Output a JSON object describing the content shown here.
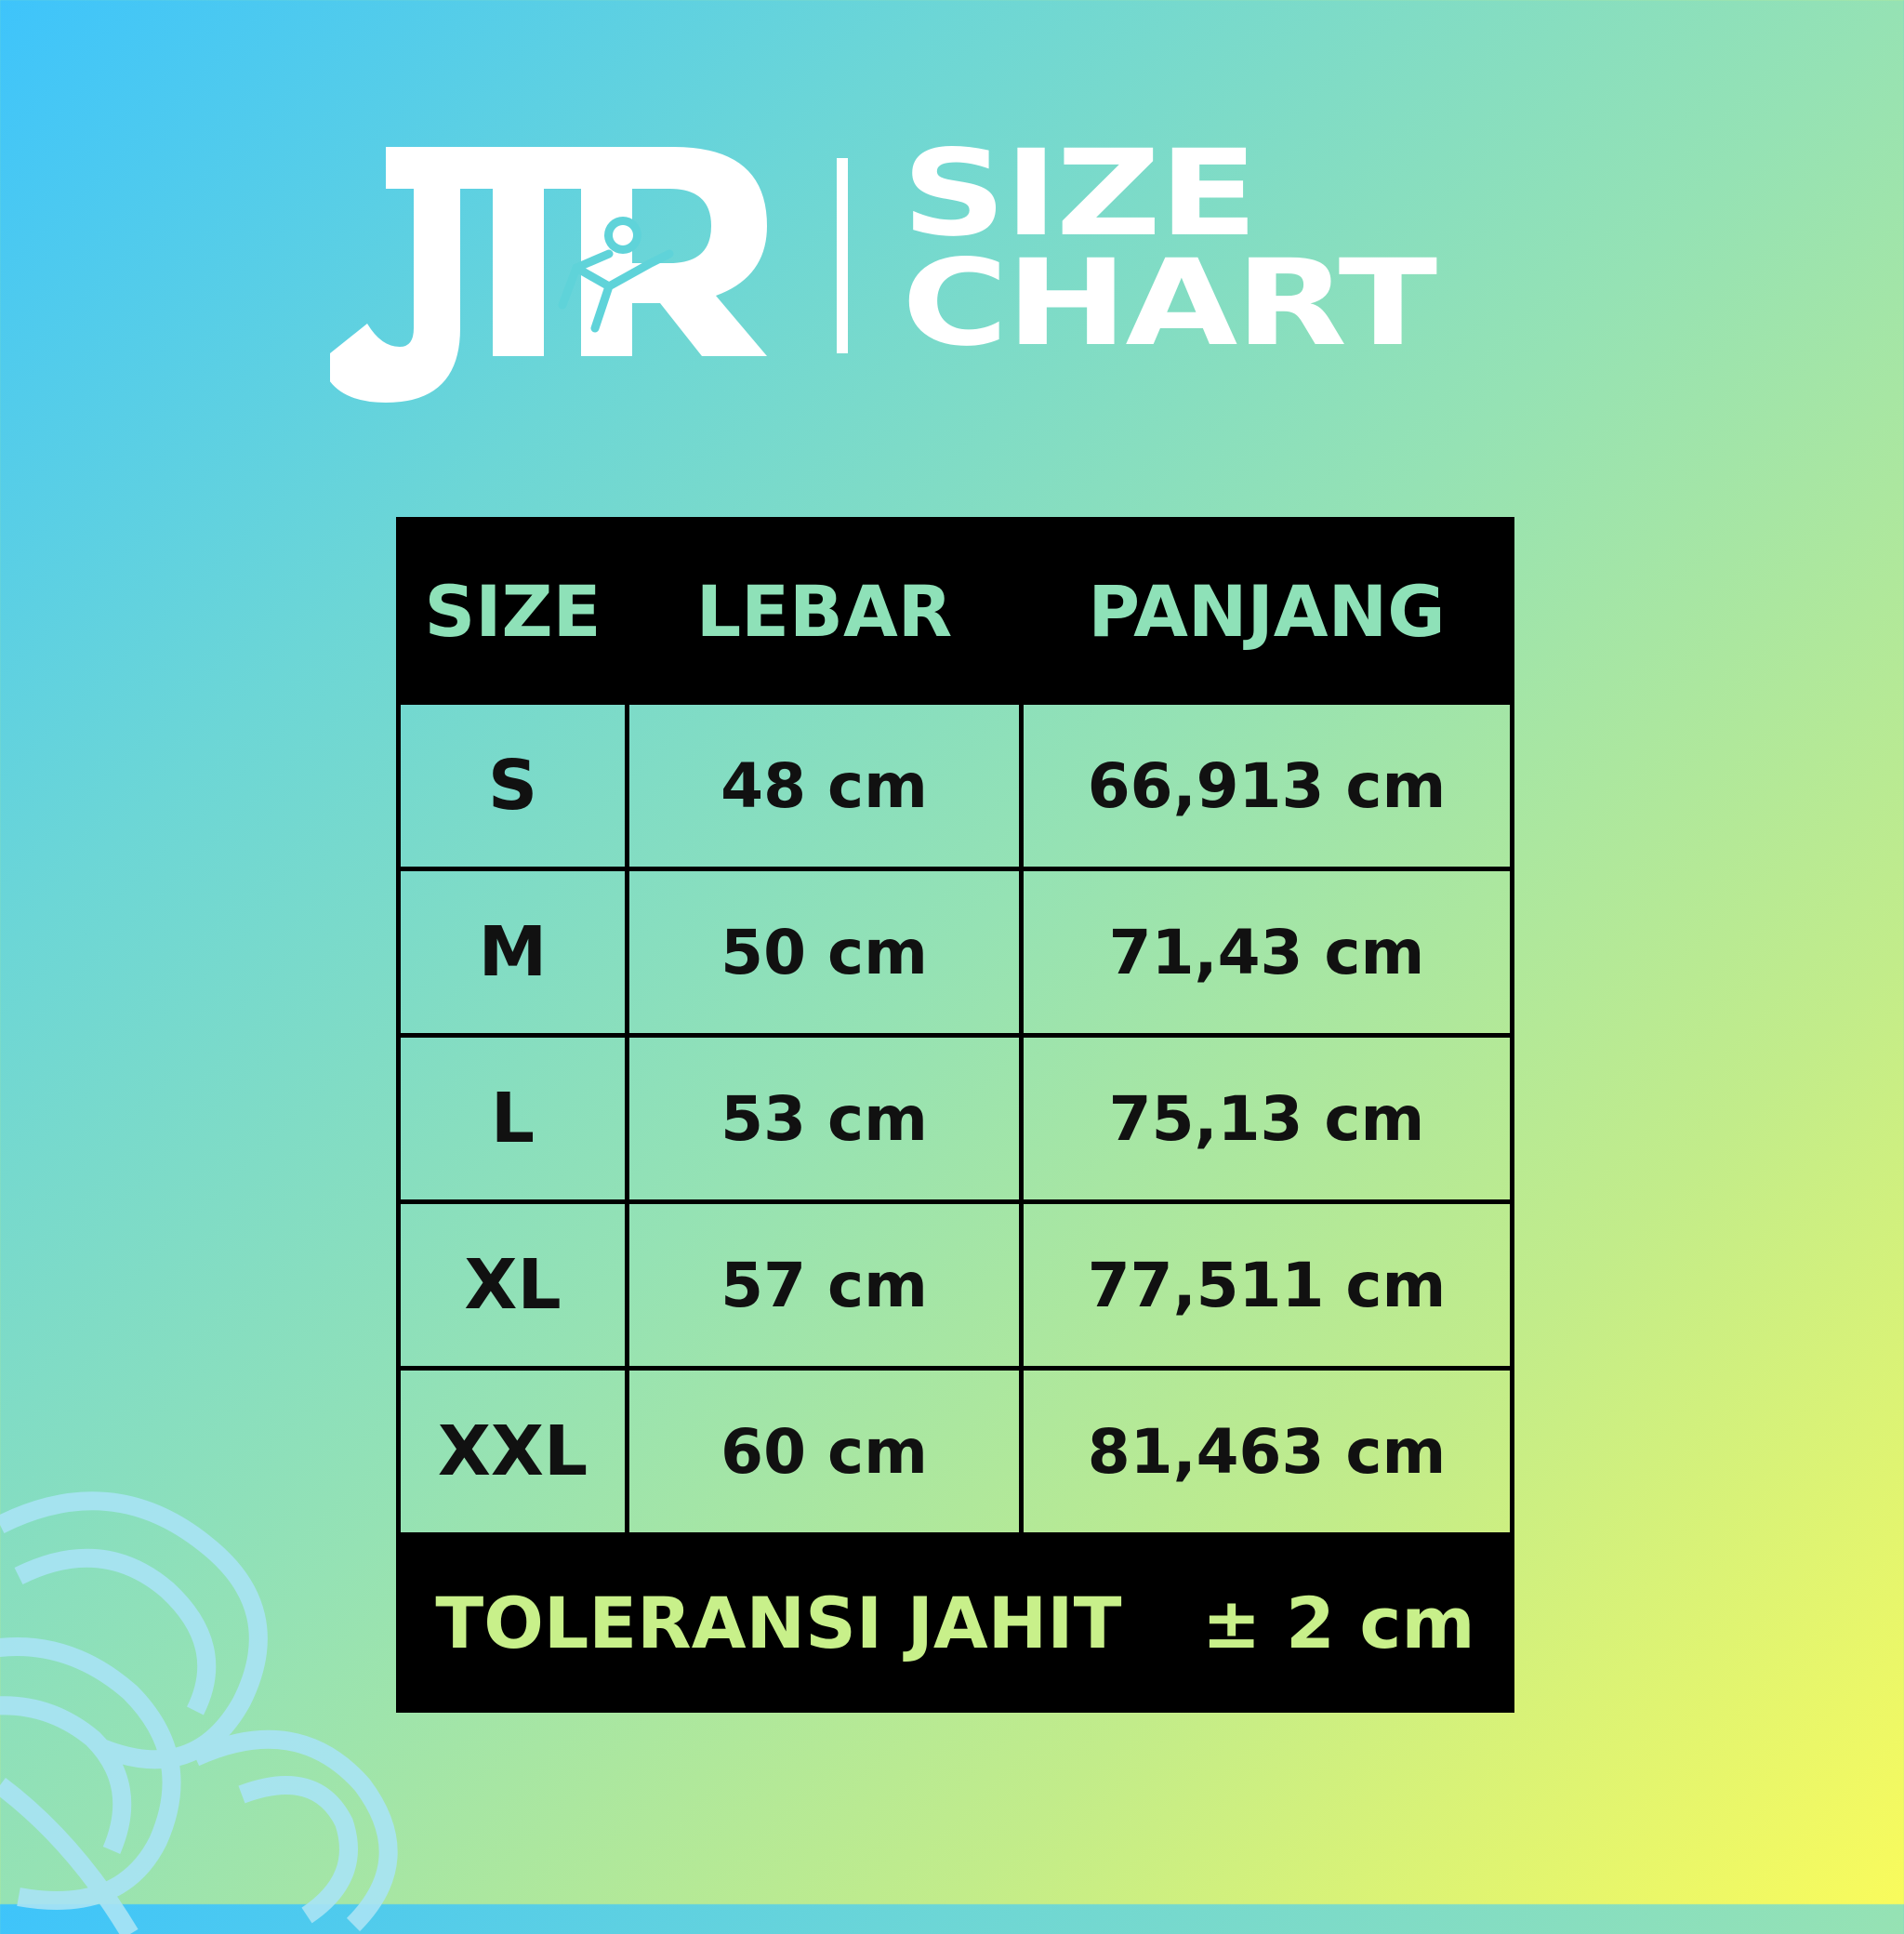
{
  "brand": {
    "logo_text": "JTR"
  },
  "header": {
    "title_line1": "SIZE",
    "title_line2": "CHART"
  },
  "table": {
    "headers": [
      "SIZE",
      "LEBAR",
      "PANJANG"
    ],
    "rows": [
      {
        "size": "S",
        "lebar": "48 cm",
        "panjang": "66,913 cm"
      },
      {
        "size": "M",
        "lebar": "50 cm",
        "panjang": "71,43 cm"
      },
      {
        "size": "L",
        "lebar": "53 cm",
        "panjang": "75,13 cm"
      },
      {
        "size": "XL",
        "lebar": "57 cm",
        "panjang": "77,511 cm"
      },
      {
        "size": "XXL",
        "lebar": "60 cm",
        "panjang": "81,463 cm"
      }
    ],
    "footer": {
      "label": "TOLERANSI JAHIT",
      "value": "± 2 cm"
    }
  },
  "colors": {
    "background_start": "#3ec4fb",
    "background_end": "#f9fb5c",
    "header_text": "#8ee1b8",
    "footer_text": "#c8f08a",
    "table_border": "#000000"
  }
}
